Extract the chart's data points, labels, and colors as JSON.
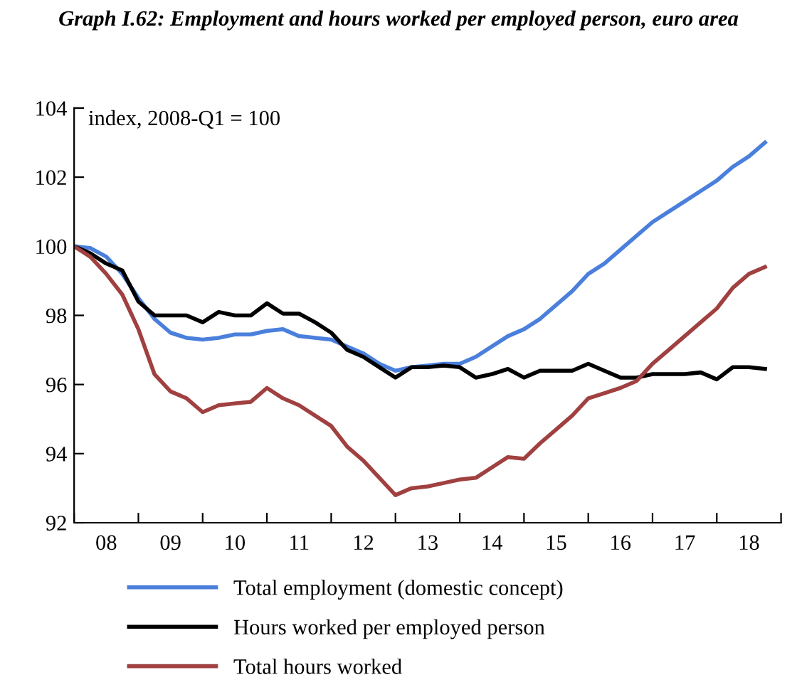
{
  "chart_data": {
    "type": "line",
    "title": "Graph I.62: Employment and hours worked per employed person, euro area",
    "annotations": [
      "index, 2008-Q1 = 100"
    ],
    "categories": [
      null,
      null,
      "08",
      null,
      null,
      null,
      "09",
      null,
      null,
      null,
      "10",
      null,
      null,
      null,
      "11",
      null,
      null,
      null,
      "12",
      null,
      null,
      null,
      "13",
      null,
      null,
      null,
      "14",
      null,
      null,
      null,
      "15",
      null,
      null,
      null,
      "16",
      null,
      null,
      null,
      "17",
      null,
      null,
      null,
      "18",
      null
    ],
    "series": [
      {
        "name": "Total employment (domestic concept)",
        "color": "#4a7fdc",
        "values": [
          100,
          99.95,
          99.7,
          99.2,
          98.5,
          97.9,
          97.5,
          97.35,
          97.3,
          97.35,
          97.45,
          97.45,
          97.55,
          97.6,
          97.4,
          97.35,
          97.3,
          97.1,
          96.9,
          96.6,
          96.4,
          96.5,
          96.55,
          96.6,
          96.6,
          96.8,
          97.1,
          97.4,
          97.6,
          97.9,
          98.3,
          98.7,
          99.2,
          99.5,
          99.9,
          100.3,
          100.7,
          101.0,
          101.3,
          101.6,
          101.9,
          102.3,
          102.6,
          103.0
        ]
      },
      {
        "name": "Hours worked per employed person",
        "color": "#000000",
        "values": [
          100,
          99.8,
          99.5,
          99.3,
          98.4,
          98.0,
          98.0,
          98.0,
          97.8,
          98.1,
          98.0,
          98.0,
          98.35,
          98.05,
          98.05,
          97.8,
          97.5,
          97.0,
          96.8,
          96.5,
          96.2,
          96.5,
          96.5,
          96.55,
          96.5,
          96.2,
          96.3,
          96.45,
          96.2,
          96.4,
          96.4,
          96.4,
          96.6,
          96.4,
          96.2,
          96.2,
          96.3,
          96.3,
          96.3,
          96.35,
          96.15,
          96.5,
          96.5,
          96.45
        ]
      },
      {
        "name": "Total hours worked",
        "color": "#a04040",
        "values": [
          100,
          99.7,
          99.2,
          98.6,
          97.6,
          96.3,
          95.8,
          95.6,
          95.2,
          95.4,
          95.45,
          95.5,
          95.9,
          95.6,
          95.4,
          95.1,
          94.8,
          94.2,
          93.8,
          93.3,
          92.8,
          93.0,
          93.05,
          93.15,
          93.25,
          93.3,
          93.6,
          93.9,
          93.85,
          94.3,
          94.7,
          95.1,
          95.6,
          95.75,
          95.9,
          96.1,
          96.6,
          97.0,
          97.4,
          97.8,
          98.2,
          98.8,
          99.2,
          99.4
        ]
      }
    ],
    "ylim": [
      92,
      104
    ],
    "yticks": [
      92,
      94,
      96,
      98,
      100,
      102,
      104
    ],
    "grid": false,
    "legend": "bottom",
    "marker": "none",
    "line_style": "solid"
  }
}
